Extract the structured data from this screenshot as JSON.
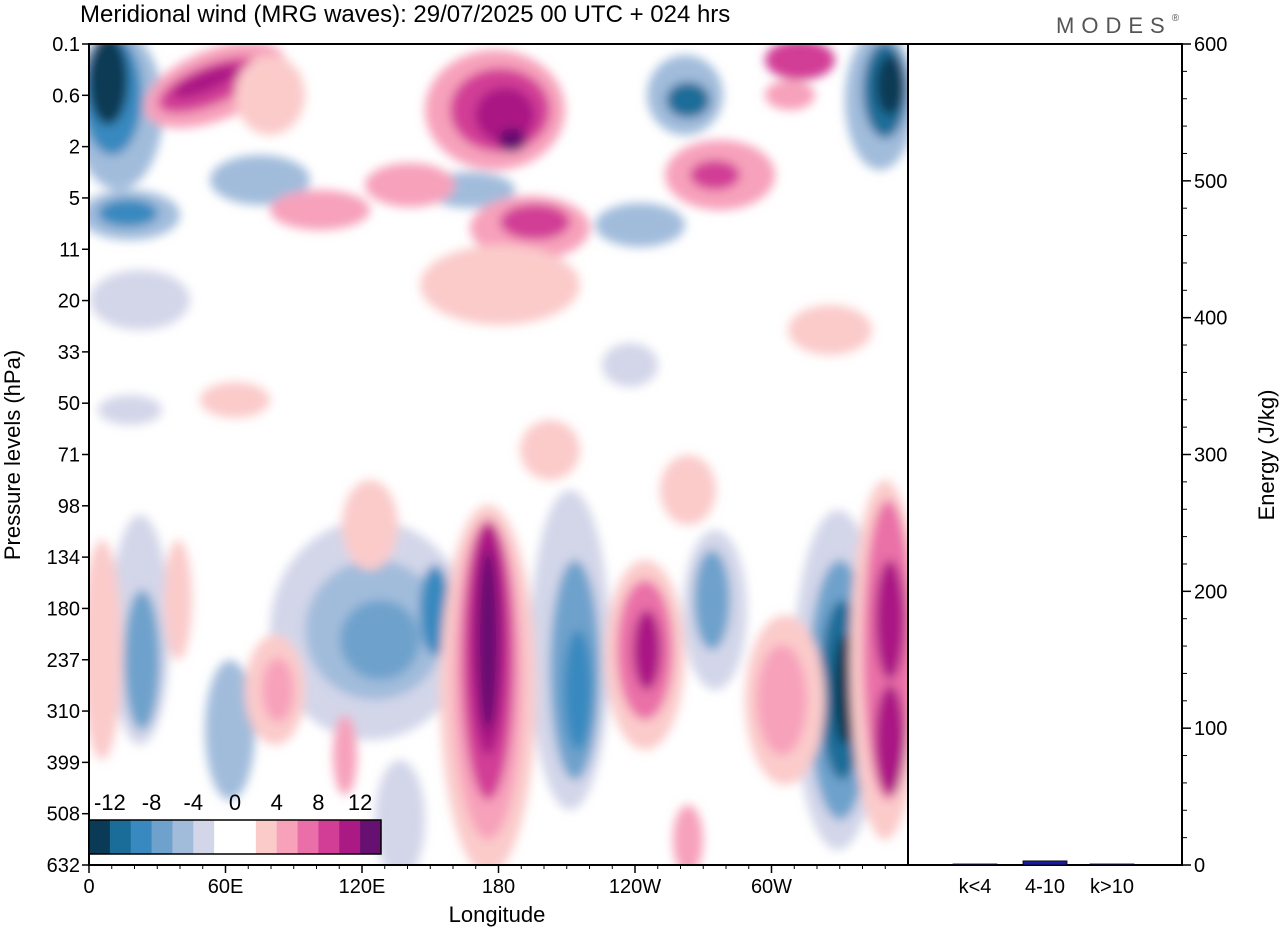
{
  "header": {
    "title": "Meridional wind (MRG waves):  29/07/2025  00 UTC  + 024 hrs",
    "logo": "MODES",
    "logo_mark": "®"
  },
  "chart_data": [
    {
      "type": "heatmap",
      "title": "Meridional wind (MRG waves):  29/07/2025  00 UTC  + 024 hrs",
      "xlabel": "Longitude",
      "ylabel": "Pressure levels (hPa)",
      "x_ticks": [
        "0",
        "60E",
        "120E",
        "180",
        "120W",
        "60W"
      ],
      "y_ticks": [
        "0.1",
        "0.6",
        "2",
        "5",
        "11",
        "20",
        "33",
        "50",
        "71",
        "98",
        "134",
        "180",
        "237",
        "310",
        "399",
        "508",
        "632"
      ],
      "colorbar": {
        "labels": [
          "-12",
          "-8",
          "-4",
          "0",
          "4",
          "8",
          "12"
        ],
        "colors": [
          "#0a3a55",
          "#1b6d99",
          "#3889bf",
          "#6ea2cc",
          "#a1bcdb",
          "#d3d6e9",
          "#ffffff",
          "#ffffff",
          "#fbcbca",
          "#f7a1bb",
          "#ea6fa8",
          "#d23d96",
          "#ab1985",
          "#661071"
        ]
      }
    },
    {
      "type": "bar",
      "ylabel": "Energy (J/kg)",
      "categories": [
        "k<4",
        "4-10",
        "k>10"
      ],
      "values": [
        0.5,
        3,
        0.3
      ],
      "ylim": [
        0,
        600
      ],
      "y_ticks": [
        "0",
        "100",
        "200",
        "300",
        "400",
        "500",
        "600"
      ],
      "bar_color": "#1a1aa0"
    }
  ]
}
